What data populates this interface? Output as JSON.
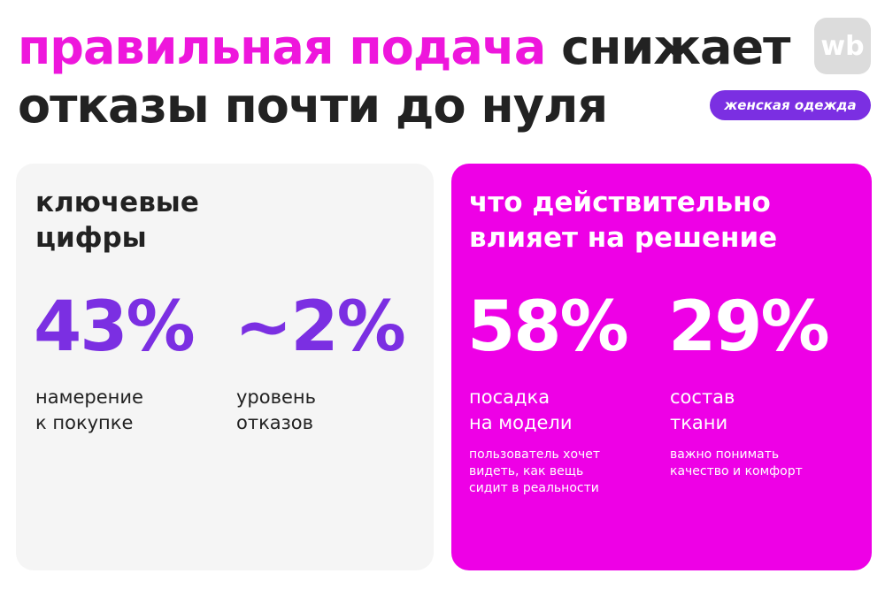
{
  "header": {
    "title_highlight": "правильная подача",
    "title_rest": "снижает",
    "title_line2": "отказы почти до нуля",
    "logo": "wb",
    "tag": "женская одежда"
  },
  "left_card": {
    "title": [
      "ключевые",
      "цифры"
    ],
    "stats": [
      {
        "value": "43%",
        "label": [
          "намерение",
          "к покупке"
        ]
      },
      {
        "value": "~2%",
        "label": [
          "уровень",
          "отказов"
        ]
      }
    ]
  },
  "right_card": {
    "title": [
      "что действительно",
      "влияет на решение"
    ],
    "stats": [
      {
        "value": "58%",
        "label": [
          "посадка",
          "на модели"
        ],
        "note": [
          "пользователь хочет",
          "видеть, как вещь",
          "сидит в реальности"
        ]
      },
      {
        "value": "29%",
        "label": [
          "состав",
          "ткани"
        ],
        "note": [
          "важно понимать",
          "качество и комфорт"
        ]
      }
    ]
  }
}
